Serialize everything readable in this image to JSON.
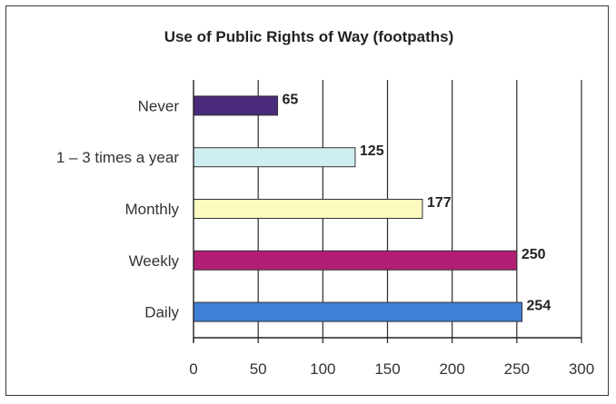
{
  "chart_data": {
    "type": "bar",
    "orientation": "horizontal",
    "title": "Use of Public Rights of Way (footpaths)",
    "categories": [
      "Never",
      "1 – 3 times a year",
      "Monthly",
      "Weekly",
      "Daily"
    ],
    "values": [
      65,
      125,
      177,
      250,
      254
    ],
    "data_labels": [
      "65",
      "125",
      "177",
      "250",
      "254"
    ],
    "colors": [
      "#4a2a7a",
      "#cfeef2",
      "#fbfbbf",
      "#b21e74",
      "#3f7fd6"
    ],
    "xlabel": "",
    "ylabel": "",
    "xlim": [
      0,
      300
    ],
    "xticks": [
      0,
      50,
      100,
      150,
      200,
      250,
      300
    ],
    "grid": true,
    "legend": "none"
  }
}
